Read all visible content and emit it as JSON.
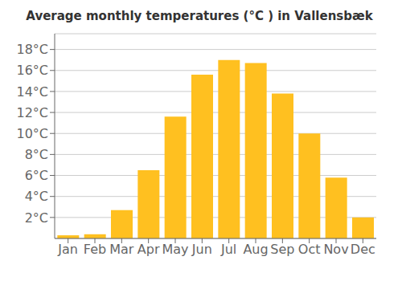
{
  "chart_data": {
    "type": "bar",
    "title": "Average monthly temperatures (°C ) in Vallensbæk",
    "categories": [
      "Jan",
      "Feb",
      "Mar",
      "Apr",
      "May",
      "Jun",
      "Jul",
      "Aug",
      "Sep",
      "Oct",
      "Nov",
      "Dec"
    ],
    "values": [
      0.3,
      0.4,
      2.7,
      6.5,
      11.6,
      15.6,
      17.0,
      16.7,
      13.8,
      10.0,
      5.8,
      2.0
    ],
    "color": "#FFC020",
    "ylim": [
      0,
      19.5
    ],
    "yticks": [
      {
        "value": 2,
        "label": "2°C"
      },
      {
        "value": 4,
        "label": "4°C"
      },
      {
        "value": 6,
        "label": "6°C"
      },
      {
        "value": 8,
        "label": "8°C"
      },
      {
        "value": 10,
        "label": "10°C"
      },
      {
        "value": 12,
        "label": "12°C"
      },
      {
        "value": 14,
        "label": "14°C"
      },
      {
        "value": 16,
        "label": "16°C"
      },
      {
        "value": 18,
        "label": "18°C"
      }
    ],
    "grid": true
  }
}
